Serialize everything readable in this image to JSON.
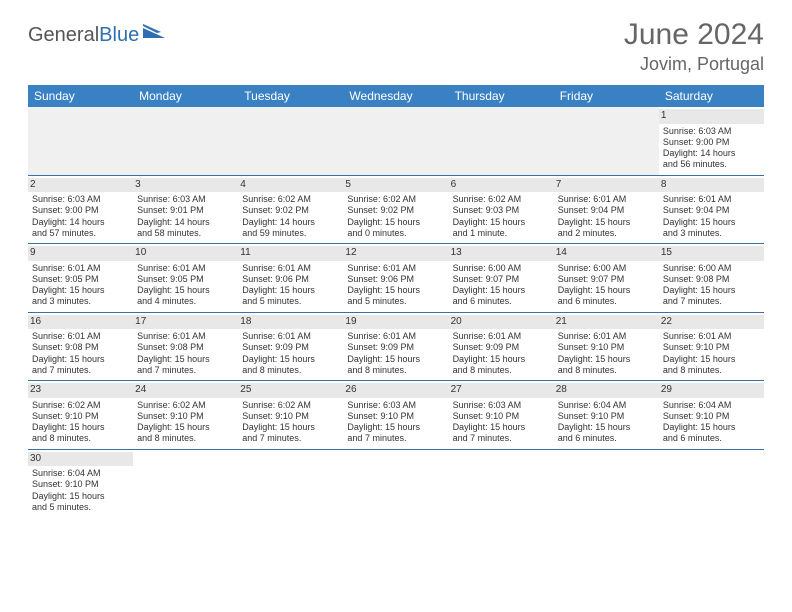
{
  "brand": {
    "part1": "General",
    "part2": "Blue"
  },
  "title": "June 2024",
  "location": "Jovim, Portugal",
  "colors": {
    "header_bg": "#3a81c4",
    "header_text": "#ffffff",
    "row_divider": "#3a6fa8",
    "daynum_bg": "#e8e8e8",
    "blank_bg": "#f0f0f0",
    "title_color": "#666666",
    "logo_accent": "#2f6fb0"
  },
  "weekdays": [
    "Sunday",
    "Monday",
    "Tuesday",
    "Wednesday",
    "Thursday",
    "Friday",
    "Saturday"
  ],
  "weeks": [
    [
      null,
      null,
      null,
      null,
      null,
      null,
      {
        "n": "1",
        "sr": "Sunrise: 6:03 AM",
        "ss": "Sunset: 9:00 PM",
        "d1": "Daylight: 14 hours",
        "d2": "and 56 minutes."
      }
    ],
    [
      {
        "n": "2",
        "sr": "Sunrise: 6:03 AM",
        "ss": "Sunset: 9:00 PM",
        "d1": "Daylight: 14 hours",
        "d2": "and 57 minutes."
      },
      {
        "n": "3",
        "sr": "Sunrise: 6:03 AM",
        "ss": "Sunset: 9:01 PM",
        "d1": "Daylight: 14 hours",
        "d2": "and 58 minutes."
      },
      {
        "n": "4",
        "sr": "Sunrise: 6:02 AM",
        "ss": "Sunset: 9:02 PM",
        "d1": "Daylight: 14 hours",
        "d2": "and 59 minutes."
      },
      {
        "n": "5",
        "sr": "Sunrise: 6:02 AM",
        "ss": "Sunset: 9:02 PM",
        "d1": "Daylight: 15 hours",
        "d2": "and 0 minutes."
      },
      {
        "n": "6",
        "sr": "Sunrise: 6:02 AM",
        "ss": "Sunset: 9:03 PM",
        "d1": "Daylight: 15 hours",
        "d2": "and 1 minute."
      },
      {
        "n": "7",
        "sr": "Sunrise: 6:01 AM",
        "ss": "Sunset: 9:04 PM",
        "d1": "Daylight: 15 hours",
        "d2": "and 2 minutes."
      },
      {
        "n": "8",
        "sr": "Sunrise: 6:01 AM",
        "ss": "Sunset: 9:04 PM",
        "d1": "Daylight: 15 hours",
        "d2": "and 3 minutes."
      }
    ],
    [
      {
        "n": "9",
        "sr": "Sunrise: 6:01 AM",
        "ss": "Sunset: 9:05 PM",
        "d1": "Daylight: 15 hours",
        "d2": "and 3 minutes."
      },
      {
        "n": "10",
        "sr": "Sunrise: 6:01 AM",
        "ss": "Sunset: 9:05 PM",
        "d1": "Daylight: 15 hours",
        "d2": "and 4 minutes."
      },
      {
        "n": "11",
        "sr": "Sunrise: 6:01 AM",
        "ss": "Sunset: 9:06 PM",
        "d1": "Daylight: 15 hours",
        "d2": "and 5 minutes."
      },
      {
        "n": "12",
        "sr": "Sunrise: 6:01 AM",
        "ss": "Sunset: 9:06 PM",
        "d1": "Daylight: 15 hours",
        "d2": "and 5 minutes."
      },
      {
        "n": "13",
        "sr": "Sunrise: 6:00 AM",
        "ss": "Sunset: 9:07 PM",
        "d1": "Daylight: 15 hours",
        "d2": "and 6 minutes."
      },
      {
        "n": "14",
        "sr": "Sunrise: 6:00 AM",
        "ss": "Sunset: 9:07 PM",
        "d1": "Daylight: 15 hours",
        "d2": "and 6 minutes."
      },
      {
        "n": "15",
        "sr": "Sunrise: 6:00 AM",
        "ss": "Sunset: 9:08 PM",
        "d1": "Daylight: 15 hours",
        "d2": "and 7 minutes."
      }
    ],
    [
      {
        "n": "16",
        "sr": "Sunrise: 6:01 AM",
        "ss": "Sunset: 9:08 PM",
        "d1": "Daylight: 15 hours",
        "d2": "and 7 minutes."
      },
      {
        "n": "17",
        "sr": "Sunrise: 6:01 AM",
        "ss": "Sunset: 9:08 PM",
        "d1": "Daylight: 15 hours",
        "d2": "and 7 minutes."
      },
      {
        "n": "18",
        "sr": "Sunrise: 6:01 AM",
        "ss": "Sunset: 9:09 PM",
        "d1": "Daylight: 15 hours",
        "d2": "and 8 minutes."
      },
      {
        "n": "19",
        "sr": "Sunrise: 6:01 AM",
        "ss": "Sunset: 9:09 PM",
        "d1": "Daylight: 15 hours",
        "d2": "and 8 minutes."
      },
      {
        "n": "20",
        "sr": "Sunrise: 6:01 AM",
        "ss": "Sunset: 9:09 PM",
        "d1": "Daylight: 15 hours",
        "d2": "and 8 minutes."
      },
      {
        "n": "21",
        "sr": "Sunrise: 6:01 AM",
        "ss": "Sunset: 9:10 PM",
        "d1": "Daylight: 15 hours",
        "d2": "and 8 minutes."
      },
      {
        "n": "22",
        "sr": "Sunrise: 6:01 AM",
        "ss": "Sunset: 9:10 PM",
        "d1": "Daylight: 15 hours",
        "d2": "and 8 minutes."
      }
    ],
    [
      {
        "n": "23",
        "sr": "Sunrise: 6:02 AM",
        "ss": "Sunset: 9:10 PM",
        "d1": "Daylight: 15 hours",
        "d2": "and 8 minutes."
      },
      {
        "n": "24",
        "sr": "Sunrise: 6:02 AM",
        "ss": "Sunset: 9:10 PM",
        "d1": "Daylight: 15 hours",
        "d2": "and 8 minutes."
      },
      {
        "n": "25",
        "sr": "Sunrise: 6:02 AM",
        "ss": "Sunset: 9:10 PM",
        "d1": "Daylight: 15 hours",
        "d2": "and 7 minutes."
      },
      {
        "n": "26",
        "sr": "Sunrise: 6:03 AM",
        "ss": "Sunset: 9:10 PM",
        "d1": "Daylight: 15 hours",
        "d2": "and 7 minutes."
      },
      {
        "n": "27",
        "sr": "Sunrise: 6:03 AM",
        "ss": "Sunset: 9:10 PM",
        "d1": "Daylight: 15 hours",
        "d2": "and 7 minutes."
      },
      {
        "n": "28",
        "sr": "Sunrise: 6:04 AM",
        "ss": "Sunset: 9:10 PM",
        "d1": "Daylight: 15 hours",
        "d2": "and 6 minutes."
      },
      {
        "n": "29",
        "sr": "Sunrise: 6:04 AM",
        "ss": "Sunset: 9:10 PM",
        "d1": "Daylight: 15 hours",
        "d2": "and 6 minutes."
      }
    ],
    [
      {
        "n": "30",
        "sr": "Sunrise: 6:04 AM",
        "ss": "Sunset: 9:10 PM",
        "d1": "Daylight: 15 hours",
        "d2": "and 5 minutes."
      },
      null,
      null,
      null,
      null,
      null,
      null
    ]
  ]
}
